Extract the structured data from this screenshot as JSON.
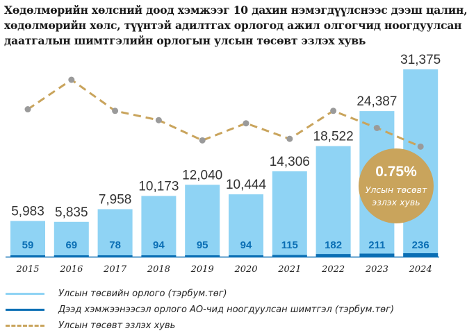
{
  "title_lines": [
    "Хөдөлмөрийн хөлсний доод хэмжээг 10 дахин нэмэгдүүлснээс дээш цалин,",
    "хөдөлмөрийн хөлс, түүнтэй адилтгах орлогод ажил олгогчид ноогдуулсан",
    "даатгалын шимтгэлийн орлогын улсын төсөвт эзлэх хувь"
  ],
  "chart_data": {
    "type": "bar",
    "categories": [
      "2015",
      "2016",
      "2017",
      "2018",
      "2019",
      "2020",
      "2021",
      "2022",
      "2023",
      "2024"
    ],
    "series": [
      {
        "name": "Улсын төсвийн орлого (тэрбум.төг)",
        "values": [
          5983,
          5835,
          7958,
          10173,
          12040,
          10444,
          14306,
          18522,
          24387,
          31375
        ],
        "labels": [
          "5,983",
          "5,835",
          "7,958",
          "10,173",
          "12,040",
          "10,444",
          "14,306",
          "18,522",
          "24,387",
          "31,375"
        ],
        "color": "#8fd3f4"
      },
      {
        "name": "Дээд хэмжээнээсэл орлого АО-чид ноогдуулсан шимтгэл (тэрбум.төг)",
        "values": [
          59,
          69,
          78,
          94,
          95,
          94,
          115,
          182,
          211,
          236
        ],
        "labels": [
          "59",
          "69",
          "78",
          "94",
          "95",
          "94",
          "115",
          "182",
          "211",
          "236"
        ],
        "color": "#0a6eb4"
      },
      {
        "name": "Улсын төсөвт эзлэх хувь",
        "type": "line",
        "values": [
          0.99,
          1.18,
          0.98,
          0.92,
          0.79,
          0.9,
          0.8,
          0.98,
          0.87,
          0.75
        ],
        "color": "#c9a45c"
      }
    ],
    "ylim": [
      0,
      33000
    ],
    "grid": false,
    "annotation": {
      "value": "0.75%",
      "text_line1": "Улсын төсөвт",
      "text_line2": "эзлэх хувь",
      "color": "#c9a45c"
    }
  },
  "legend": [
    {
      "label": "Улсын төсвийн орлого (тэрбум.төг)",
      "style": "light"
    },
    {
      "label": "Дээд хэмжээнээсэл орлого АО-чид ноогдуулсан шимтгэл (тэрбум.төг)",
      "style": "dark"
    },
    {
      "label": "Улсын төсөвт эзлэх хувь",
      "style": "dash"
    }
  ]
}
